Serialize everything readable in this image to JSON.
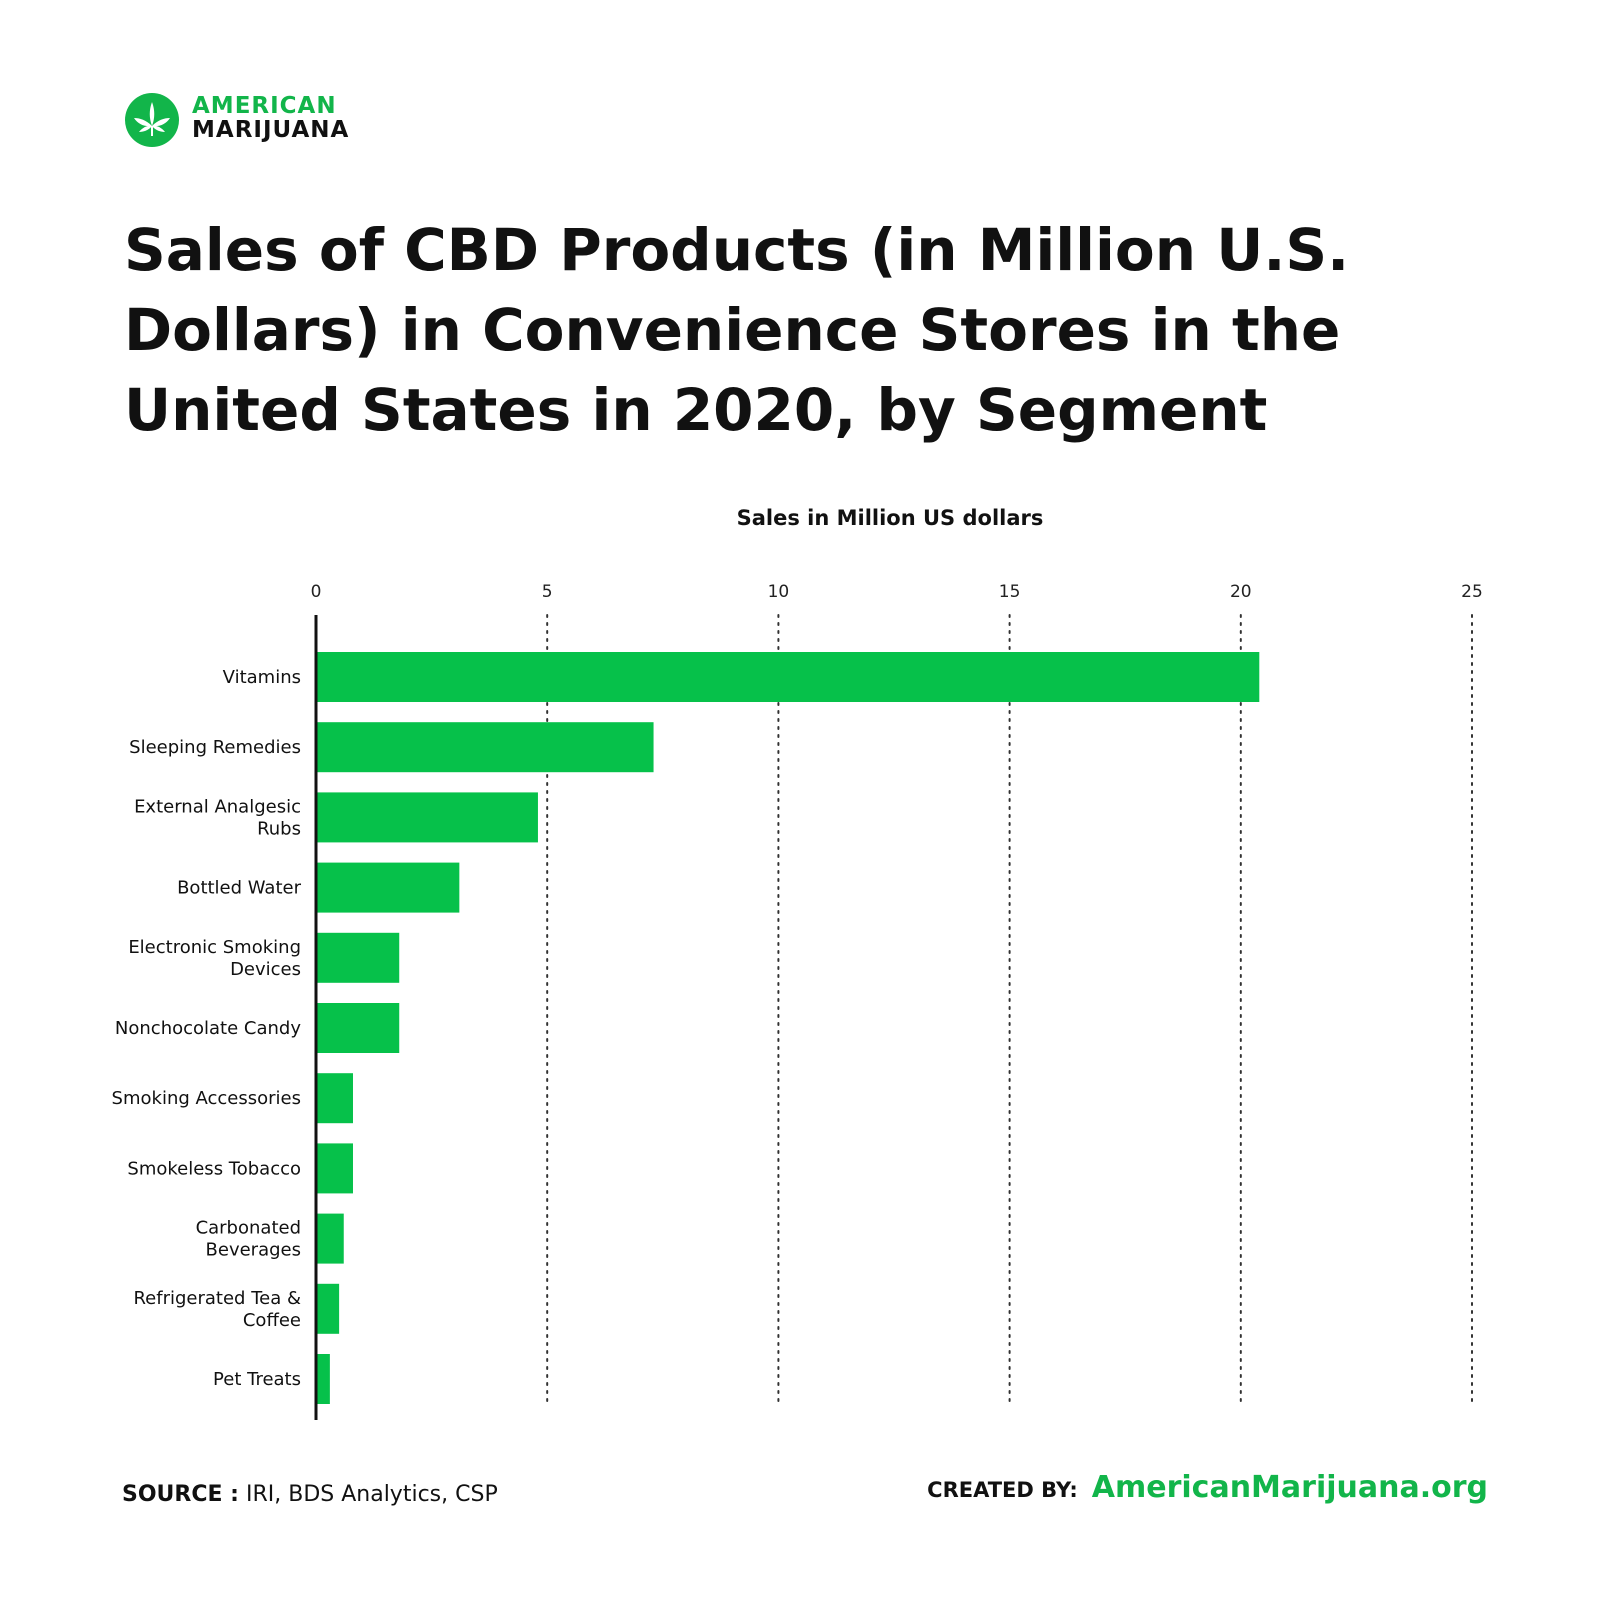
{
  "brand": {
    "line1": "AMERICAN",
    "line2": "MARIJUANA",
    "accent_color": "#12b54a",
    "icon": "cannabis-leaf-icon"
  },
  "title": "Sales of CBD Products (in Million U.S. Dollars) in Convenience Stores in the United States in 2020, by Segment",
  "chart_data": {
    "type": "bar",
    "orientation": "horizontal",
    "title": "Sales of CBD Products (in Million U.S. Dollars) in Convenience Stores in the United States in 2020, by Segment",
    "xlabel": "Sales in Million US dollars",
    "ylabel": "",
    "xlim": [
      0,
      25
    ],
    "xticks": [
      0,
      5,
      10,
      15,
      20,
      25
    ],
    "grid": "vertical dotted",
    "bar_color": "#06c14a",
    "categories": [
      [
        "Vitamins"
      ],
      [
        "Sleeping Remedies"
      ],
      [
        "External Analgesic",
        "Rubs"
      ],
      [
        "Bottled Water"
      ],
      [
        "Electronic Smoking",
        "Devices"
      ],
      [
        "Nonchocolate Candy"
      ],
      [
        "Smoking Accessories"
      ],
      [
        "Smokeless Tobacco"
      ],
      [
        "Carbonated",
        "Beverages"
      ],
      [
        "Refrigerated Tea &",
        "Coffee"
      ],
      [
        "Pet Treats"
      ]
    ],
    "values": [
      20.4,
      7.3,
      4.8,
      3.1,
      1.8,
      1.8,
      0.8,
      0.8,
      0.6,
      0.5,
      0.3
    ]
  },
  "footer": {
    "source_label": "SOURCE :",
    "source_value": "IRI, BDS Analytics, CSP",
    "created_label": "CREATED BY:",
    "created_value": "AmericanMarijuana.org"
  }
}
